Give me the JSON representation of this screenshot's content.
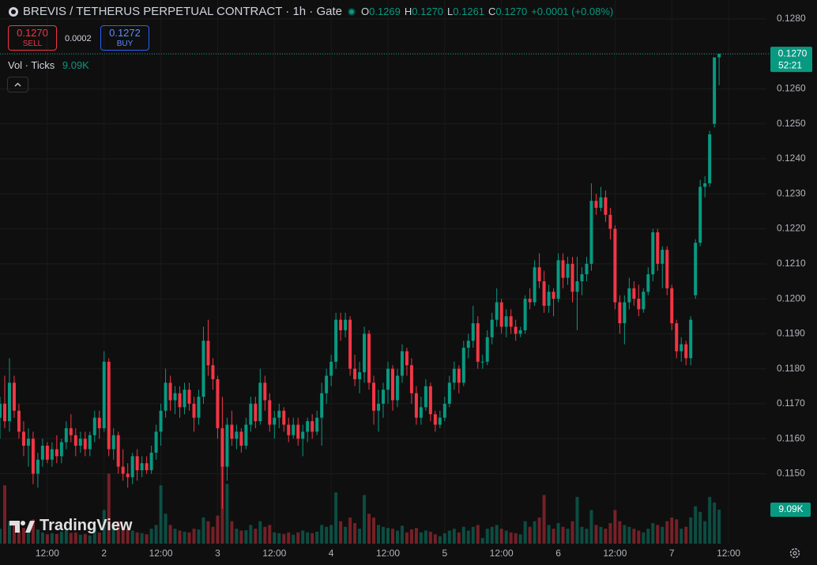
{
  "chart_data": {
    "type": "candlestick",
    "header": {
      "symbol": "BREVIS / TETHERUS PERPETUAL CONTRACT · 1h · Gate",
      "o_key": "O",
      "o": "0.1269",
      "h_key": "H",
      "h": "0.1270",
      "l_key": "L",
      "l": "0.1261",
      "c_key": "C",
      "c": "0.1270",
      "change": "+0.0001 (+0.08%)"
    },
    "trade": {
      "sell_price": "0.1270",
      "sell": "SELL",
      "spread": "0.0002",
      "buy_price": "0.1272",
      "buy": "BUY"
    },
    "volume_legend": {
      "name": "Vol · Ticks",
      "value": "9.09K"
    },
    "last_price": {
      "label": "0.1270",
      "countdown": "52:21"
    },
    "last_volume_label": "9.09K",
    "watermark": "TradingView",
    "up_color": "#089981",
    "down_color": "#f23645",
    "grid": true,
    "ylim": [
      0.113,
      0.12854
    ],
    "yticks": [
      {
        "value": 0.128,
        "label": "0.1280"
      },
      {
        "value": 0.127,
        "label": "0.1270"
      },
      {
        "value": 0.126,
        "label": "0.1260"
      },
      {
        "value": 0.125,
        "label": "0.1250"
      },
      {
        "value": 0.124,
        "label": "0.1240"
      },
      {
        "value": 0.123,
        "label": "0.1230"
      },
      {
        "value": 0.122,
        "label": "0.1220"
      },
      {
        "value": 0.121,
        "label": "0.1210"
      },
      {
        "value": 0.12,
        "label": "0.1200"
      },
      {
        "value": 0.119,
        "label": "0.1190"
      },
      {
        "value": 0.118,
        "label": "0.1180"
      },
      {
        "value": 0.117,
        "label": "0.1170"
      },
      {
        "value": 0.116,
        "label": "0.1160"
      },
      {
        "value": 0.115,
        "label": "0.1150"
      }
    ],
    "xlim": [
      0,
      162
    ],
    "xticks": [
      {
        "value": 10,
        "label": "12:00"
      },
      {
        "value": 22,
        "label": "2"
      },
      {
        "value": 34,
        "label": "12:00"
      },
      {
        "value": 46,
        "label": "3"
      },
      {
        "value": 58,
        "label": "12:00"
      },
      {
        "value": 70,
        "label": "4"
      },
      {
        "value": 82,
        "label": "12:00"
      },
      {
        "value": 94,
        "label": "5"
      },
      {
        "value": 106,
        "label": "12:00"
      },
      {
        "value": 118,
        "label": "6"
      },
      {
        "value": 130,
        "label": "12:00"
      },
      {
        "value": 142,
        "label": "7"
      },
      {
        "value": 154,
        "label": "12:00"
      }
    ],
    "volume_lim": [
      0,
      30000
    ],
    "candles": [
      [
        0.1166,
        0.1172,
        0.116,
        0.117,
        4000
      ],
      [
        0.117,
        0.1178,
        0.1163,
        0.1165,
        15600
      ],
      [
        0.1165,
        0.1183,
        0.1162,
        0.1176,
        6000
      ],
      [
        0.1176,
        0.1178,
        0.1166,
        0.1168,
        5000
      ],
      [
        0.1168,
        0.117,
        0.116,
        0.1162,
        3500
      ],
      [
        0.1162,
        0.1165,
        0.1155,
        0.1158,
        4200
      ],
      [
        0.1158,
        0.1163,
        0.1152,
        0.116,
        3000
      ],
      [
        0.116,
        0.1162,
        0.1147,
        0.115,
        6500
      ],
      [
        0.115,
        0.1156,
        0.1146,
        0.1154,
        3800
      ],
      [
        0.1154,
        0.116,
        0.1152,
        0.1158,
        3000
      ],
      [
        0.1158,
        0.1159,
        0.1153,
        0.1154,
        2500
      ],
      [
        0.1154,
        0.1159,
        0.1152,
        0.1157,
        2800
      ],
      [
        0.1157,
        0.1161,
        0.1153,
        0.1155,
        2600
      ],
      [
        0.1155,
        0.116,
        0.1153,
        0.1159,
        3200
      ],
      [
        0.1159,
        0.1165,
        0.1157,
        0.1163,
        3600
      ],
      [
        0.1163,
        0.1167,
        0.1159,
        0.1161,
        2900
      ],
      [
        0.1161,
        0.1163,
        0.1155,
        0.1158,
        3000
      ],
      [
        0.1158,
        0.1162,
        0.1156,
        0.116,
        2400
      ],
      [
        0.116,
        0.1162,
        0.1155,
        0.1157,
        2600
      ],
      [
        0.1157,
        0.1162,
        0.1155,
        0.1161,
        2200
      ],
      [
        0.1161,
        0.1168,
        0.1159,
        0.1166,
        4500
      ],
      [
        0.1166,
        0.1168,
        0.116,
        0.1163,
        3000
      ],
      [
        0.1163,
        0.1185,
        0.1162,
        0.1182,
        9000
      ],
      [
        0.1182,
        0.1183,
        0.1155,
        0.1157,
        18700
      ],
      [
        0.1157,
        0.1163,
        0.1154,
        0.1161,
        5000
      ],
      [
        0.1161,
        0.1162,
        0.115,
        0.1152,
        6000
      ],
      [
        0.1152,
        0.1157,
        0.1148,
        0.115,
        4500
      ],
      [
        0.115,
        0.1153,
        0.1146,
        0.1149,
        4000
      ],
      [
        0.1149,
        0.1156,
        0.1147,
        0.1155,
        3500
      ],
      [
        0.1155,
        0.1157,
        0.1148,
        0.1151,
        3000
      ],
      [
        0.1151,
        0.1155,
        0.1149,
        0.1153,
        2800
      ],
      [
        0.1153,
        0.1155,
        0.115,
        0.1151,
        2500
      ],
      [
        0.1151,
        0.1158,
        0.115,
        0.1156,
        4000
      ],
      [
        0.1156,
        0.1164,
        0.1154,
        0.1162,
        5000
      ],
      [
        0.1162,
        0.117,
        0.1158,
        0.1168,
        15600
      ],
      [
        0.1168,
        0.118,
        0.1166,
        0.1176,
        8000
      ],
      [
        0.1176,
        0.1178,
        0.1168,
        0.1171,
        5000
      ],
      [
        0.1171,
        0.1175,
        0.1167,
        0.1173,
        4000
      ],
      [
        0.1173,
        0.1175,
        0.1166,
        0.1169,
        3500
      ],
      [
        0.1169,
        0.1176,
        0.1167,
        0.1174,
        3200
      ],
      [
        0.1174,
        0.1176,
        0.1168,
        0.117,
        3000
      ],
      [
        0.117,
        0.1172,
        0.1162,
        0.1166,
        4000
      ],
      [
        0.1166,
        0.1174,
        0.1164,
        0.1172,
        3800
      ],
      [
        0.1172,
        0.1192,
        0.117,
        0.1188,
        7000
      ],
      [
        0.1188,
        0.1194,
        0.1178,
        0.1181,
        6000
      ],
      [
        0.1181,
        0.1183,
        0.1174,
        0.1177,
        4500
      ],
      [
        0.1177,
        0.1178,
        0.116,
        0.1163,
        7500
      ],
      [
        0.1163,
        0.1172,
        0.114,
        0.1152,
        24600
      ],
      [
        0.1152,
        0.1166,
        0.1148,
        0.1164,
        16000
      ],
      [
        0.1164,
        0.1168,
        0.1158,
        0.116,
        6000
      ],
      [
        0.116,
        0.1164,
        0.1157,
        0.1162,
        4000
      ],
      [
        0.1162,
        0.1163,
        0.1156,
        0.1158,
        3500
      ],
      [
        0.1158,
        0.1166,
        0.1157,
        0.1164,
        3600
      ],
      [
        0.1164,
        0.1172,
        0.1162,
        0.117,
        5000
      ],
      [
        0.117,
        0.1172,
        0.1163,
        0.1165,
        4000
      ],
      [
        0.1165,
        0.118,
        0.1164,
        0.1176,
        6000
      ],
      [
        0.1176,
        0.1178,
        0.1168,
        0.1171,
        4500
      ],
      [
        0.1171,
        0.1173,
        0.1162,
        0.1164,
        5000
      ],
      [
        0.1164,
        0.1168,
        0.116,
        0.1166,
        3000
      ],
      [
        0.1166,
        0.117,
        0.1163,
        0.1168,
        2800
      ],
      [
        0.1168,
        0.1169,
        0.1162,
        0.1164,
        2600
      ],
      [
        0.1164,
        0.1166,
        0.1159,
        0.1161,
        3000
      ],
      [
        0.1161,
        0.1166,
        0.116,
        0.1164,
        2400
      ],
      [
        0.1164,
        0.1166,
        0.1158,
        0.116,
        3000
      ],
      [
        0.116,
        0.1164,
        0.1155,
        0.1162,
        3500
      ],
      [
        0.1162,
        0.1166,
        0.1159,
        0.1165,
        3000
      ],
      [
        0.1165,
        0.1167,
        0.116,
        0.1162,
        2800
      ],
      [
        0.1162,
        0.1168,
        0.1161,
        0.1166,
        3200
      ],
      [
        0.1166,
        0.1176,
        0.1158,
        0.1173,
        5000
      ],
      [
        0.1173,
        0.118,
        0.117,
        0.1178,
        4500
      ],
      [
        0.1178,
        0.1184,
        0.1175,
        0.1182,
        5000
      ],
      [
        0.1182,
        0.1196,
        0.118,
        0.1194,
        13700
      ],
      [
        0.1194,
        0.1196,
        0.1188,
        0.1191,
        6000
      ],
      [
        0.1191,
        0.1196,
        0.1189,
        0.1194,
        4500
      ],
      [
        0.1194,
        0.1195,
        0.1178,
        0.118,
        7000
      ],
      [
        0.118,
        0.1184,
        0.1175,
        0.1177,
        5500
      ],
      [
        0.1177,
        0.1182,
        0.1173,
        0.1179,
        4000
      ],
      [
        0.1179,
        0.1192,
        0.1176,
        0.119,
        13000
      ],
      [
        0.119,
        0.1191,
        0.1174,
        0.1176,
        8000
      ],
      [
        0.1176,
        0.1178,
        0.1164,
        0.1168,
        7000
      ],
      [
        0.1168,
        0.1174,
        0.1162,
        0.117,
        5000
      ],
      [
        0.117,
        0.1176,
        0.1166,
        0.1174,
        4500
      ],
      [
        0.1174,
        0.1182,
        0.117,
        0.118,
        4200
      ],
      [
        0.118,
        0.1181,
        0.1168,
        0.1171,
        4000
      ],
      [
        0.1171,
        0.118,
        0.1169,
        0.1178,
        3500
      ],
      [
        0.1178,
        0.1187,
        0.1176,
        0.1185,
        4800
      ],
      [
        0.1185,
        0.1186,
        0.1178,
        0.1181,
        3000
      ],
      [
        0.1181,
        0.1183,
        0.117,
        0.1173,
        3800
      ],
      [
        0.1173,
        0.1175,
        0.1164,
        0.1166,
        4200
      ],
      [
        0.1166,
        0.1172,
        0.1164,
        0.1169,
        3000
      ],
      [
        0.1169,
        0.1177,
        0.1168,
        0.1175,
        3500
      ],
      [
        0.1175,
        0.1176,
        0.1165,
        0.1167,
        3200
      ],
      [
        0.1167,
        0.1168,
        0.1162,
        0.1164,
        2500
      ],
      [
        0.1164,
        0.1168,
        0.1163,
        0.1166,
        2000
      ],
      [
        0.1166,
        0.1172,
        0.1165,
        0.117,
        2800
      ],
      [
        0.117,
        0.1178,
        0.1169,
        0.1176,
        3500
      ],
      [
        0.1176,
        0.1182,
        0.1174,
        0.118,
        4000
      ],
      [
        0.118,
        0.1181,
        0.1173,
        0.1176,
        3000
      ],
      [
        0.1176,
        0.1188,
        0.1175,
        0.1186,
        4500
      ],
      [
        0.1186,
        0.119,
        0.1183,
        0.1188,
        3500
      ],
      [
        0.1188,
        0.1198,
        0.1186,
        0.1193,
        4500
      ],
      [
        0.1193,
        0.1195,
        0.118,
        0.1182,
        5000
      ],
      [
        0.1182,
        0.1184,
        0.118,
        0.1182,
        1500
      ],
      [
        0.1182,
        0.1191,
        0.1181,
        0.1189,
        4000
      ],
      [
        0.1189,
        0.1196,
        0.1187,
        0.1194,
        4500
      ],
      [
        0.1194,
        0.1203,
        0.1192,
        0.1199,
        5000
      ],
      [
        0.1199,
        0.12,
        0.119,
        0.1192,
        4000
      ],
      [
        0.1192,
        0.1197,
        0.1189,
        0.1195,
        3500
      ],
      [
        0.1195,
        0.1197,
        0.119,
        0.1192,
        3000
      ],
      [
        0.1192,
        0.1194,
        0.1188,
        0.119,
        2800
      ],
      [
        0.119,
        0.1192,
        0.1189,
        0.1191,
        2500
      ],
      [
        0.1191,
        0.1201,
        0.119,
        0.12,
        6000
      ],
      [
        0.12,
        0.1203,
        0.1197,
        0.1199,
        4500
      ],
      [
        0.1199,
        0.1211,
        0.1198,
        0.1209,
        6000
      ],
      [
        0.1209,
        0.1213,
        0.1203,
        0.1205,
        7000
      ],
      [
        0.1205,
        0.1208,
        0.1196,
        0.1198,
        13000
      ],
      [
        0.1198,
        0.1204,
        0.1196,
        0.1202,
        5000
      ],
      [
        0.1202,
        0.1203,
        0.1195,
        0.12,
        4000
      ],
      [
        0.12,
        0.1213,
        0.1199,
        0.1211,
        5500
      ],
      [
        0.1211,
        0.1213,
        0.1203,
        0.1206,
        4500
      ],
      [
        0.1206,
        0.1212,
        0.1204,
        0.121,
        4000
      ],
      [
        0.121,
        0.1212,
        0.1199,
        0.1202,
        6000
      ],
      [
        0.1202,
        0.1212,
        0.1191,
        0.1205,
        12500
      ],
      [
        0.1205,
        0.1209,
        0.1201,
        0.1207,
        4500
      ],
      [
        0.1207,
        0.1212,
        0.1205,
        0.121,
        4000
      ],
      [
        0.121,
        0.1233,
        0.1208,
        0.1228,
        9000
      ],
      [
        0.1228,
        0.123,
        0.1224,
        0.1226,
        5000
      ],
      [
        0.1226,
        0.1232,
        0.1225,
        0.1229,
        4500
      ],
      [
        0.1229,
        0.1231,
        0.1222,
        0.1224,
        4000
      ],
      [
        0.1224,
        0.1226,
        0.1217,
        0.122,
        5500
      ],
      [
        0.122,
        0.1221,
        0.1197,
        0.1199,
        9000
      ],
      [
        0.1199,
        0.1201,
        0.119,
        0.1193,
        6000
      ],
      [
        0.1193,
        0.1201,
        0.1187,
        0.1199,
        5000
      ],
      [
        0.1199,
        0.1206,
        0.1197,
        0.1203,
        4500
      ],
      [
        0.1203,
        0.1205,
        0.1198,
        0.12,
        4000
      ],
      [
        0.12,
        0.1204,
        0.1195,
        0.1197,
        3500
      ],
      [
        0.1197,
        0.1203,
        0.1196,
        0.1202,
        3000
      ],
      [
        0.1202,
        0.1209,
        0.1201,
        0.1207,
        4000
      ],
      [
        0.1207,
        0.122,
        0.1205,
        0.1219,
        5500
      ],
      [
        0.1219,
        0.122,
        0.1208,
        0.121,
        5000
      ],
      [
        0.121,
        0.1215,
        0.1203,
        0.1214,
        4500
      ],
      [
        0.1214,
        0.1215,
        0.1201,
        0.1203,
        6000
      ],
      [
        0.1203,
        0.1204,
        0.1191,
        0.1193,
        7000
      ],
      [
        0.1193,
        0.1194,
        0.1183,
        0.1185,
        6500
      ],
      [
        0.1185,
        0.1189,
        0.1182,
        0.1187,
        4000
      ],
      [
        0.1187,
        0.1188,
        0.1181,
        0.1183,
        4500
      ],
      [
        0.1183,
        0.1195,
        0.1181,
        0.1194,
        7000
      ],
      [
        0.1201,
        0.1217,
        0.12,
        0.1216,
        10000
      ],
      [
        0.1216,
        0.1234,
        0.1215,
        0.1232,
        8500
      ],
      [
        0.1232,
        0.1235,
        0.1229,
        0.1233,
        6000
      ],
      [
        0.1233,
        0.1248,
        0.1232,
        0.1247,
        12500
      ],
      [
        0.125,
        0.1269,
        0.1249,
        0.1269,
        11000
      ],
      [
        0.1269,
        0.127,
        0.1261,
        0.127,
        9090
      ]
    ]
  }
}
